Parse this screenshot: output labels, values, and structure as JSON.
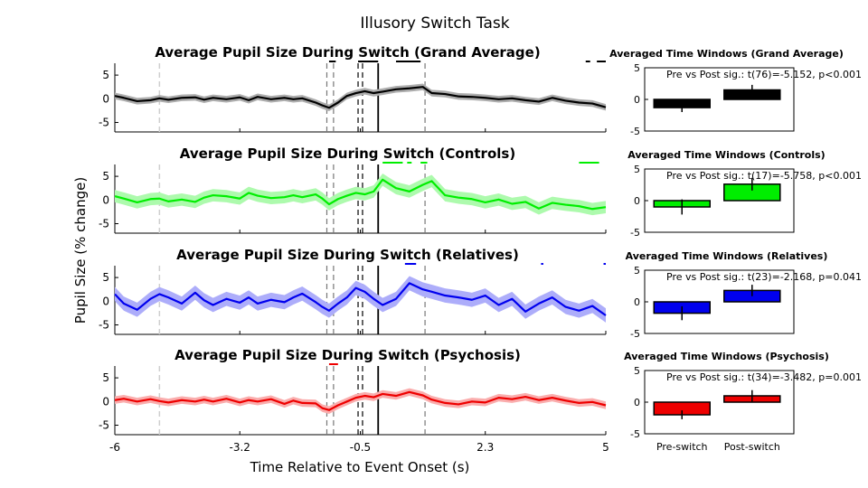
{
  "figure": {
    "title": "Illusory Switch Task",
    "ylabel": "Pupil Size (% change)",
    "xlabel": "Time Relative to Event Onset (s)",
    "x_ticks": [
      "-6",
      "-3.2",
      "-0.5",
      "2.3",
      "5"
    ],
    "bar_categories": [
      "Pre-switch",
      "Post-switch"
    ]
  },
  "colors": {
    "grand": "#000000",
    "controls": "#00ee00",
    "relatives": "#0000ee",
    "psychosis": "#ee0000"
  },
  "chart_data": [
    {
      "type": "line",
      "title": "Average Pupil Size During Switch (Grand Average)",
      "color": "#000000",
      "xlim": [
        -6,
        5
      ],
      "ylim": [
        -7,
        7.5
      ],
      "y_ticks": [
        5,
        0,
        -5
      ],
      "x_ticks": [
        -6,
        -3.2,
        -0.5,
        2.3,
        5
      ],
      "event_lines": [
        -1.25,
        -1.1,
        -0.55,
        -0.45,
        -0.1,
        0.95,
        -5.0
      ],
      "sig_segments": [
        [
          -1.2,
          -1.05
        ],
        [
          -0.55,
          -0.1
        ],
        [
          0.3,
          0.85
        ],
        [
          4.55,
          4.65
        ],
        [
          4.8,
          5.0
        ]
      ],
      "series": [
        {
          "x": [
            -6.0,
            -5.8,
            -5.5,
            -5.2,
            -5.0,
            -4.8,
            -4.5,
            -4.2,
            -4.0,
            -3.8,
            -3.5,
            -3.2,
            -3.0,
            -2.8,
            -2.5,
            -2.2,
            -2.0,
            -1.8,
            -1.5,
            -1.35,
            -1.2,
            -1.0,
            -0.8,
            -0.6,
            -0.4,
            -0.2,
            0.0,
            0.3,
            0.6,
            0.9,
            1.1,
            1.4,
            1.7,
            2.0,
            2.3,
            2.6,
            2.9,
            3.2,
            3.5,
            3.8,
            4.1,
            4.4,
            4.7,
            5.0
          ],
          "mean": [
            0.6,
            0.2,
            -0.5,
            -0.3,
            0.1,
            -0.2,
            0.2,
            0.3,
            -0.2,
            0.2,
            -0.1,
            0.3,
            -0.3,
            0.4,
            -0.1,
            0.2,
            -0.1,
            0.1,
            -0.8,
            -1.4,
            -1.9,
            -0.8,
            0.6,
            1.2,
            1.6,
            1.2,
            1.5,
            2.0,
            2.2,
            2.5,
            1.2,
            1.0,
            0.5,
            0.4,
            0.2,
            -0.1,
            0.1,
            -0.3,
            -0.6,
            0.2,
            -0.4,
            -0.8,
            -1.0,
            -1.8
          ],
          "err": 0.7
        }
      ],
      "bars": {
        "categories": [
          "Pre-switch",
          "Post-switch"
        ],
        "values": [
          -1.3,
          1.5
        ],
        "errors": [
          0.7,
          0.8
        ],
        "ylim": [
          -5,
          5
        ],
        "y_ticks": [
          5,
          0,
          -5
        ]
      },
      "stat_text": "Pre vs Post sig.: t(76)=-5.152, p<0.001",
      "bar_title": "Averaged Time Windows (Grand Average)"
    },
    {
      "type": "line",
      "title": "Average Pupil Size During Switch (Controls)",
      "color": "#00ee00",
      "xlim": [
        -6,
        5
      ],
      "ylim": [
        -7,
        7.5
      ],
      "y_ticks": [
        5,
        0,
        -5
      ],
      "x_ticks": [
        -6,
        -3.2,
        -0.5,
        2.3,
        5
      ],
      "event_lines": [
        -1.25,
        -1.1,
        -0.55,
        -0.45,
        -0.1,
        0.95,
        -5.0
      ],
      "sig_segments": [
        [
          0.0,
          0.45
        ],
        [
          0.55,
          0.65
        ],
        [
          0.85,
          1.0
        ],
        [
          4.4,
          4.85
        ]
      ],
      "series": [
        {
          "x": [
            -6.0,
            -5.8,
            -5.5,
            -5.2,
            -5.0,
            -4.8,
            -4.5,
            -4.2,
            -4.0,
            -3.8,
            -3.5,
            -3.2,
            -3.0,
            -2.8,
            -2.5,
            -2.2,
            -2.0,
            -1.8,
            -1.5,
            -1.35,
            -1.2,
            -1.0,
            -0.8,
            -0.6,
            -0.4,
            -0.2,
            0.0,
            0.3,
            0.6,
            0.9,
            1.1,
            1.4,
            1.7,
            2.0,
            2.3,
            2.6,
            2.9,
            3.2,
            3.5,
            3.8,
            4.1,
            4.4,
            4.7,
            5.0
          ],
          "mean": [
            0.8,
            0.3,
            -0.5,
            0.2,
            0.3,
            -0.3,
            0.1,
            -0.4,
            0.5,
            1.0,
            0.8,
            0.3,
            1.5,
            0.9,
            0.4,
            0.6,
            1.0,
            0.6,
            1.2,
            0.3,
            -0.9,
            0.2,
            0.9,
            1.5,
            1.2,
            1.8,
            4.3,
            2.5,
            1.8,
            3.2,
            4.0,
            1.0,
            0.5,
            0.2,
            -0.5,
            0.1,
            -0.8,
            -0.4,
            -1.8,
            -0.6,
            -1.0,
            -1.3,
            -1.9,
            -1.5
          ],
          "err": 1.3
        }
      ],
      "bars": {
        "categories": [
          "Pre-switch",
          "Post-switch"
        ],
        "values": [
          -1.0,
          2.6
        ],
        "errors": [
          1.2,
          1.0
        ],
        "ylim": [
          -5,
          5
        ],
        "y_ticks": [
          5,
          0,
          -5
        ]
      },
      "stat_text": "Pre vs Post sig.: t(17)=-5.758, p<0.001",
      "bar_title": "Averaged Time Windows (Controls)"
    },
    {
      "type": "line",
      "title": "Average Pupil Size During Switch (Relatives)",
      "color": "#0000ee",
      "xlim": [
        -6,
        5
      ],
      "ylim": [
        -7,
        7.5
      ],
      "y_ticks": [
        5,
        0,
        -5
      ],
      "x_ticks": [
        -6,
        -3.2,
        -0.5,
        2.3,
        5
      ],
      "event_lines": [
        -1.25,
        -1.1,
        -0.55,
        -0.45,
        -0.1,
        0.95,
        -5.0
      ],
      "sig_segments": [
        [
          0.5,
          0.75
        ],
        [
          3.55,
          3.6
        ],
        [
          4.95,
          5.0
        ]
      ],
      "series": [
        {
          "x": [
            -6.0,
            -5.8,
            -5.5,
            -5.2,
            -5.0,
            -4.8,
            -4.5,
            -4.2,
            -4.0,
            -3.8,
            -3.5,
            -3.2,
            -3.0,
            -2.8,
            -2.5,
            -2.2,
            -2.0,
            -1.8,
            -1.5,
            -1.35,
            -1.2,
            -1.0,
            -0.8,
            -0.6,
            -0.4,
            -0.2,
            0.0,
            0.3,
            0.6,
            0.9,
            1.1,
            1.4,
            1.7,
            2.0,
            2.3,
            2.6,
            2.9,
            3.2,
            3.5,
            3.8,
            4.1,
            4.4,
            4.7,
            5.0
          ],
          "mean": [
            1.5,
            -0.5,
            -1.8,
            0.5,
            1.5,
            0.8,
            -0.5,
            1.8,
            0.2,
            -0.8,
            0.5,
            -0.3,
            0.8,
            -0.5,
            0.3,
            -0.2,
            0.8,
            1.6,
            -0.2,
            -1.2,
            -2.0,
            -0.5,
            0.8,
            2.8,
            2.0,
            0.5,
            -0.8,
            0.5,
            3.8,
            2.5,
            2.0,
            1.2,
            0.8,
            0.3,
            1.2,
            -0.8,
            0.5,
            -2.2,
            -0.5,
            0.8,
            -1.2,
            -2.0,
            -1.0,
            -3.0
          ],
          "err": 1.5
        }
      ],
      "bars": {
        "categories": [
          "Pre-switch",
          "Post-switch"
        ],
        "values": [
          -1.8,
          1.8
        ],
        "errors": [
          1.1,
          0.9
        ],
        "ylim": [
          -5,
          5
        ],
        "y_ticks": [
          5,
          0,
          -5
        ]
      },
      "stat_text": "Pre vs Post sig.: t(23)=-2.168, p=0.041",
      "bar_title": "Averaged Time Windows (Relatives)"
    },
    {
      "type": "line",
      "title": "Average Pupil Size During Switch (Psychosis)",
      "color": "#ee0000",
      "xlim": [
        -6,
        5
      ],
      "ylim": [
        -7,
        7.5
      ],
      "y_ticks": [
        5,
        0,
        -5
      ],
      "x_ticks": [
        -6,
        -3.2,
        -0.5,
        2.3,
        5
      ],
      "event_lines": [
        -1.25,
        -1.1,
        -0.55,
        -0.45,
        -0.1,
        0.95,
        -5.0
      ],
      "sig_segments": [
        [
          -1.2,
          -1.0
        ]
      ],
      "series": [
        {
          "x": [
            -6.0,
            -5.8,
            -5.5,
            -5.2,
            -5.0,
            -4.8,
            -4.5,
            -4.2,
            -4.0,
            -3.8,
            -3.5,
            -3.2,
            -3.0,
            -2.8,
            -2.5,
            -2.2,
            -2.0,
            -1.8,
            -1.5,
            -1.35,
            -1.2,
            -1.0,
            -0.8,
            -0.6,
            -0.4,
            -0.2,
            0.0,
            0.3,
            0.6,
            0.9,
            1.1,
            1.4,
            1.7,
            2.0,
            2.3,
            2.6,
            2.9,
            3.2,
            3.5,
            3.8,
            4.1,
            4.4,
            4.7,
            5.0
          ],
          "mean": [
            0.3,
            0.6,
            0.0,
            0.5,
            0.1,
            -0.2,
            0.3,
            0.0,
            0.4,
            0.0,
            0.6,
            -0.2,
            0.3,
            0.0,
            0.5,
            -0.5,
            0.2,
            -0.3,
            -0.4,
            -1.4,
            -1.8,
            -0.8,
            0.0,
            0.8,
            1.2,
            0.9,
            1.6,
            1.2,
            2.0,
            1.3,
            0.4,
            -0.3,
            -0.6,
            0.0,
            -0.2,
            0.8,
            0.5,
            1.0,
            0.3,
            0.8,
            0.2,
            -0.3,
            -0.1,
            -0.8
          ],
          "err": 0.8
        }
      ],
      "bars": {
        "categories": [
          "Pre-switch",
          "Post-switch"
        ],
        "values": [
          -2.0,
          1.0
        ],
        "errors": [
          0.7,
          0.9
        ],
        "ylim": [
          -5,
          5
        ],
        "y_ticks": [
          5,
          0,
          -5
        ]
      },
      "stat_text": "Pre vs Post sig.: t(34)=-3.482, p=0.001",
      "bar_title": "Averaged Time Windows (Psychosis)"
    }
  ]
}
